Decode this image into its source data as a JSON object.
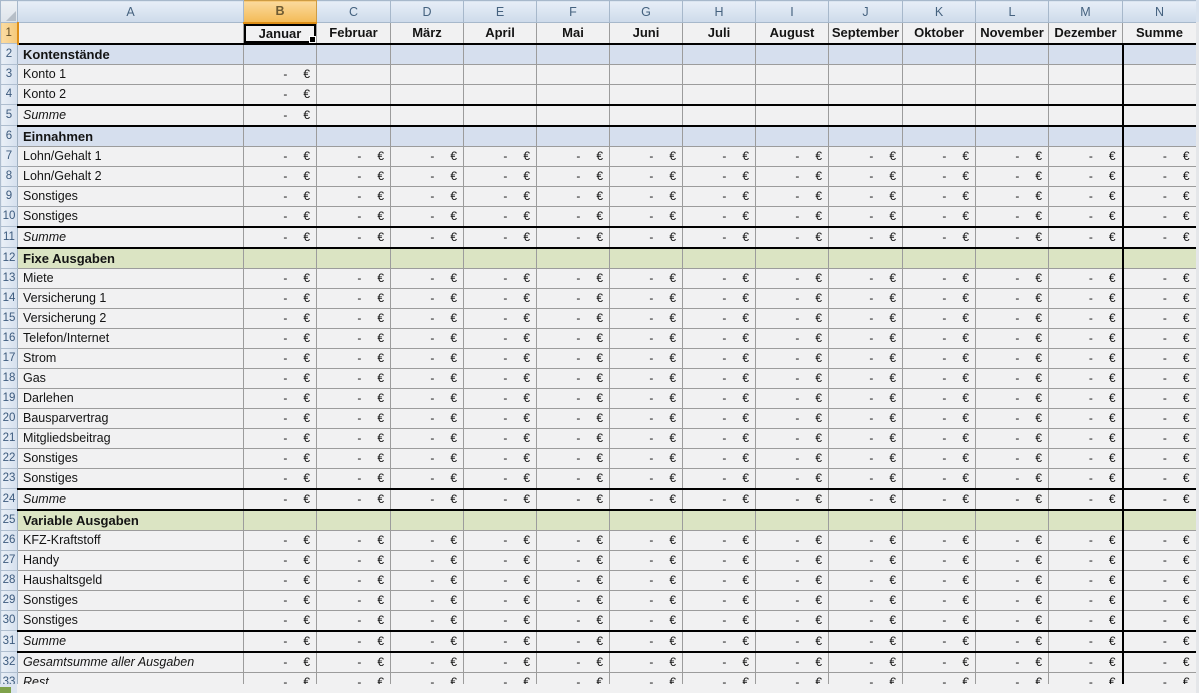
{
  "app": {
    "type": "spreadsheet-grid",
    "description": "household budget worksheet"
  },
  "column_headers": [
    "A",
    "B",
    "C",
    "D",
    "E",
    "F",
    "G",
    "H",
    "I",
    "J",
    "K",
    "L",
    "M",
    "N"
  ],
  "selected_column": "B",
  "selected_row": "1",
  "selected_cell": "B1",
  "month_row": {
    "row_number": "1",
    "labels": [
      "Januar",
      "Februar",
      "März",
      "April",
      "Mai",
      "Juni",
      "Juli",
      "August",
      "September",
      "Oktober",
      "November",
      "Dezember",
      "Summe"
    ]
  },
  "value_format": {
    "dash": "-",
    "currency": "€"
  },
  "rows": [
    {
      "n": 2,
      "label": "Kontenstände",
      "type": "section-blue",
      "values": "none"
    },
    {
      "n": 3,
      "label": "Konto 1",
      "type": "item",
      "values": "B"
    },
    {
      "n": 4,
      "label": "Konto 2",
      "type": "item",
      "values": "B"
    },
    {
      "n": 5,
      "label": "Summe",
      "type": "sum",
      "values": "B"
    },
    {
      "n": 6,
      "label": "Einnahmen",
      "type": "section-blue",
      "values": "none"
    },
    {
      "n": 7,
      "label": "Lohn/Gehalt 1",
      "type": "item",
      "values": "all"
    },
    {
      "n": 8,
      "label": "Lohn/Gehalt 2",
      "type": "item",
      "values": "all"
    },
    {
      "n": 9,
      "label": "Sonstiges",
      "type": "item",
      "values": "all"
    },
    {
      "n": 10,
      "label": "Sonstiges",
      "type": "item",
      "values": "all"
    },
    {
      "n": 11,
      "label": "Summe",
      "type": "sum",
      "values": "all"
    },
    {
      "n": 12,
      "label": "Fixe Ausgaben",
      "type": "section-green",
      "values": "none"
    },
    {
      "n": 13,
      "label": "Miete",
      "type": "item",
      "values": "all"
    },
    {
      "n": 14,
      "label": "Versicherung 1",
      "type": "item",
      "values": "all"
    },
    {
      "n": 15,
      "label": "Versicherung 2",
      "type": "item",
      "values": "all"
    },
    {
      "n": 16,
      "label": "Telefon/Internet",
      "type": "item",
      "values": "all"
    },
    {
      "n": 17,
      "label": "Strom",
      "type": "item",
      "values": "all"
    },
    {
      "n": 18,
      "label": "Gas",
      "type": "item",
      "values": "all"
    },
    {
      "n": 19,
      "label": "Darlehen",
      "type": "item",
      "values": "all"
    },
    {
      "n": 20,
      "label": "Bausparvertrag",
      "type": "item",
      "values": "all"
    },
    {
      "n": 21,
      "label": "Mitgliedsbeitrag",
      "type": "item",
      "values": "all"
    },
    {
      "n": 22,
      "label": "Sonstiges",
      "type": "item",
      "values": "all"
    },
    {
      "n": 23,
      "label": "Sonstiges",
      "type": "item",
      "values": "all"
    },
    {
      "n": 24,
      "label": "Summe",
      "type": "sum",
      "values": "all"
    },
    {
      "n": 25,
      "label": "Variable Ausgaben",
      "type": "section-green",
      "values": "none"
    },
    {
      "n": 26,
      "label": "KFZ-Kraftstoff",
      "type": "item",
      "values": "all"
    },
    {
      "n": 27,
      "label": "Handy",
      "type": "item",
      "values": "all"
    },
    {
      "n": 28,
      "label": "Haushaltsgeld",
      "type": "item",
      "values": "all"
    },
    {
      "n": 29,
      "label": "Sonstiges",
      "type": "item",
      "values": "all"
    },
    {
      "n": 30,
      "label": "Sonstiges",
      "type": "item",
      "values": "all"
    },
    {
      "n": 31,
      "label": "Summe",
      "type": "sum",
      "values": "all"
    },
    {
      "n": 32,
      "label": "Gesamtsumme aller Ausgaben",
      "type": "total",
      "values": "all"
    },
    {
      "n": 33,
      "label": "Rest",
      "type": "total",
      "values": "all",
      "thick_bottom": true
    }
  ],
  "colors": {
    "section_blue": "#D6DFEE",
    "section_green": "#DBE4C3",
    "cell_bg": "#F1F1F2",
    "grid_line": "#9C9C9C",
    "thick": "#000000",
    "text": "#141414",
    "header_top": "#E7EEF7",
    "header_bottom": "#CDDAEA",
    "header_border": "#A7B8CB",
    "header_text": "#45627F",
    "sel_header_top": "#FBDA9E",
    "sel_header_bottom": "#F3BA56",
    "sel_border": "#DD8E17"
  }
}
